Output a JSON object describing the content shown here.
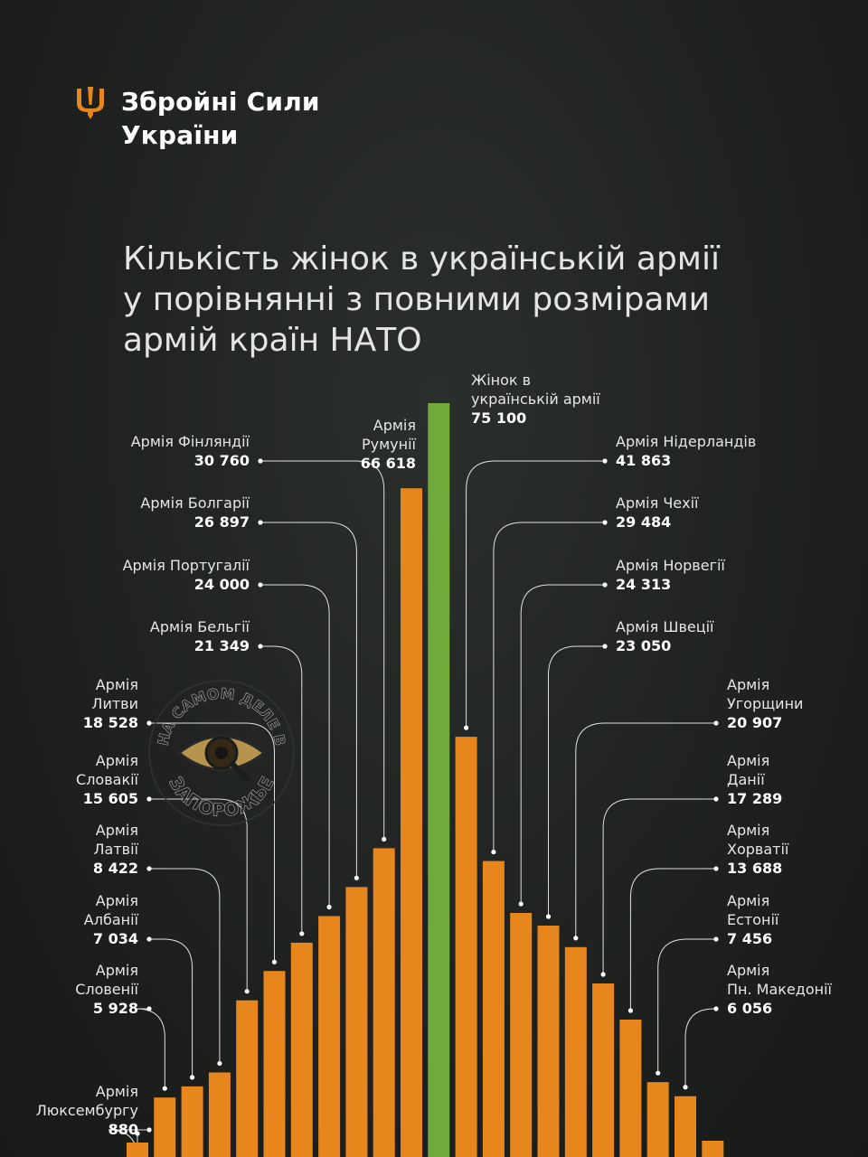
{
  "header": {
    "logo_icon": "trident-icon",
    "org_line1": "Збройні Сили",
    "org_line2": "України"
  },
  "title_lines": [
    "Кількість жінок в українській армії",
    "у порівнянні з повними розмірами",
    "армій країн НАТО"
  ],
  "watermark": {
    "icon": "eye-magnifier-icon",
    "text_top": "НА САМОМ ДЕЛЕ В",
    "text_bottom": "ЗАПОРОЖЬЕ"
  },
  "colors": {
    "bar": "#e7861d",
    "highlight_bar": "#6fab3b",
    "label": "#e6e6e6",
    "value": "#ffffff",
    "leader_line": "#e0e0e0"
  },
  "chart_data": {
    "type": "bar",
    "unit": "",
    "series": [
      {
        "values": [
          880,
          5928,
          7034,
          8422,
          15605,
          18528,
          21349,
          24000,
          26897,
          30760,
          66618,
          75100,
          41863,
          29484,
          24313,
          23050,
          20907,
          17289,
          13688,
          7456,
          6056,
          null
        ]
      }
    ],
    "bars": [
      {
        "label": [
          "Армія",
          "Люксембургу"
        ],
        "value_text": "880",
        "value": 880,
        "side": "left"
      },
      {
        "label": [
          "Армія",
          "Словенії"
        ],
        "value_text": "5 928",
        "value": 5928,
        "side": "left"
      },
      {
        "label": [
          "Армія",
          "Албанії"
        ],
        "value_text": "7 034",
        "value": 7034,
        "side": "left"
      },
      {
        "label": [
          "Армія",
          "Латвії"
        ],
        "value_text": "8 422",
        "value": 8422,
        "side": "left"
      },
      {
        "label": [
          "Армія",
          "Словакії"
        ],
        "value_text": "15 605",
        "value": 15605,
        "side": "left"
      },
      {
        "label": [
          "Армія",
          "Литви"
        ],
        "value_text": "18 528",
        "value": 18528,
        "side": "left"
      },
      {
        "label": [
          "Армія Бельгії"
        ],
        "value_text": "21 349",
        "value": 21349,
        "side": "left"
      },
      {
        "label": [
          "Армія Португалії"
        ],
        "value_text": "24 000",
        "value": 24000,
        "side": "left"
      },
      {
        "label": [
          "Армія Болгарії"
        ],
        "value_text": "26 897",
        "value": 26897,
        "side": "left"
      },
      {
        "label": [
          "Армія Фінляндії"
        ],
        "value_text": "30 760",
        "value": 30760,
        "side": "left"
      },
      {
        "label": [
          "Армія",
          "Румунії"
        ],
        "value_text": "66 618",
        "value": 66618,
        "side": "left"
      },
      {
        "label": [
          "Жінок в",
          "українській армії"
        ],
        "value_text": "75 100",
        "value": 75100,
        "side": "right",
        "highlight": true
      },
      {
        "label": [
          "Армія Нідерландів"
        ],
        "value_text": "41 863",
        "value": 41863,
        "side": "right"
      },
      {
        "label": [
          "Армія Чехії"
        ],
        "value_text": "29 484",
        "value": 29484,
        "side": "right"
      },
      {
        "label": [
          "Армія Норвегії"
        ],
        "value_text": "24 313",
        "value": 24313,
        "side": "right"
      },
      {
        "label": [
          "Армія Швеції"
        ],
        "value_text": "23 050",
        "value": 23050,
        "side": "right"
      },
      {
        "label": [
          "Армія",
          "Угорщини"
        ],
        "value_text": "20 907",
        "value": 20907,
        "side": "right"
      },
      {
        "label": [
          "Армія",
          "Данії"
        ],
        "value_text": "17 289",
        "value": 17289,
        "side": "right"
      },
      {
        "label": [
          "Армія",
          "Хорватії"
        ],
        "value_text": "13 688",
        "value": 13688,
        "side": "right"
      },
      {
        "label": [
          "Армія",
          "Естонії"
        ],
        "value_text": "7 456",
        "value": 7456,
        "side": "right"
      },
      {
        "label": [
          "Армія",
          "Пн. Македонії"
        ],
        "value_text": "6 056",
        "value": 6056,
        "side": "right"
      },
      {
        "label": [],
        "value_text": "",
        "value": null,
        "side": "right"
      }
    ],
    "ylim": [
      0,
      75100
    ],
    "grid": false,
    "legend": "none"
  }
}
